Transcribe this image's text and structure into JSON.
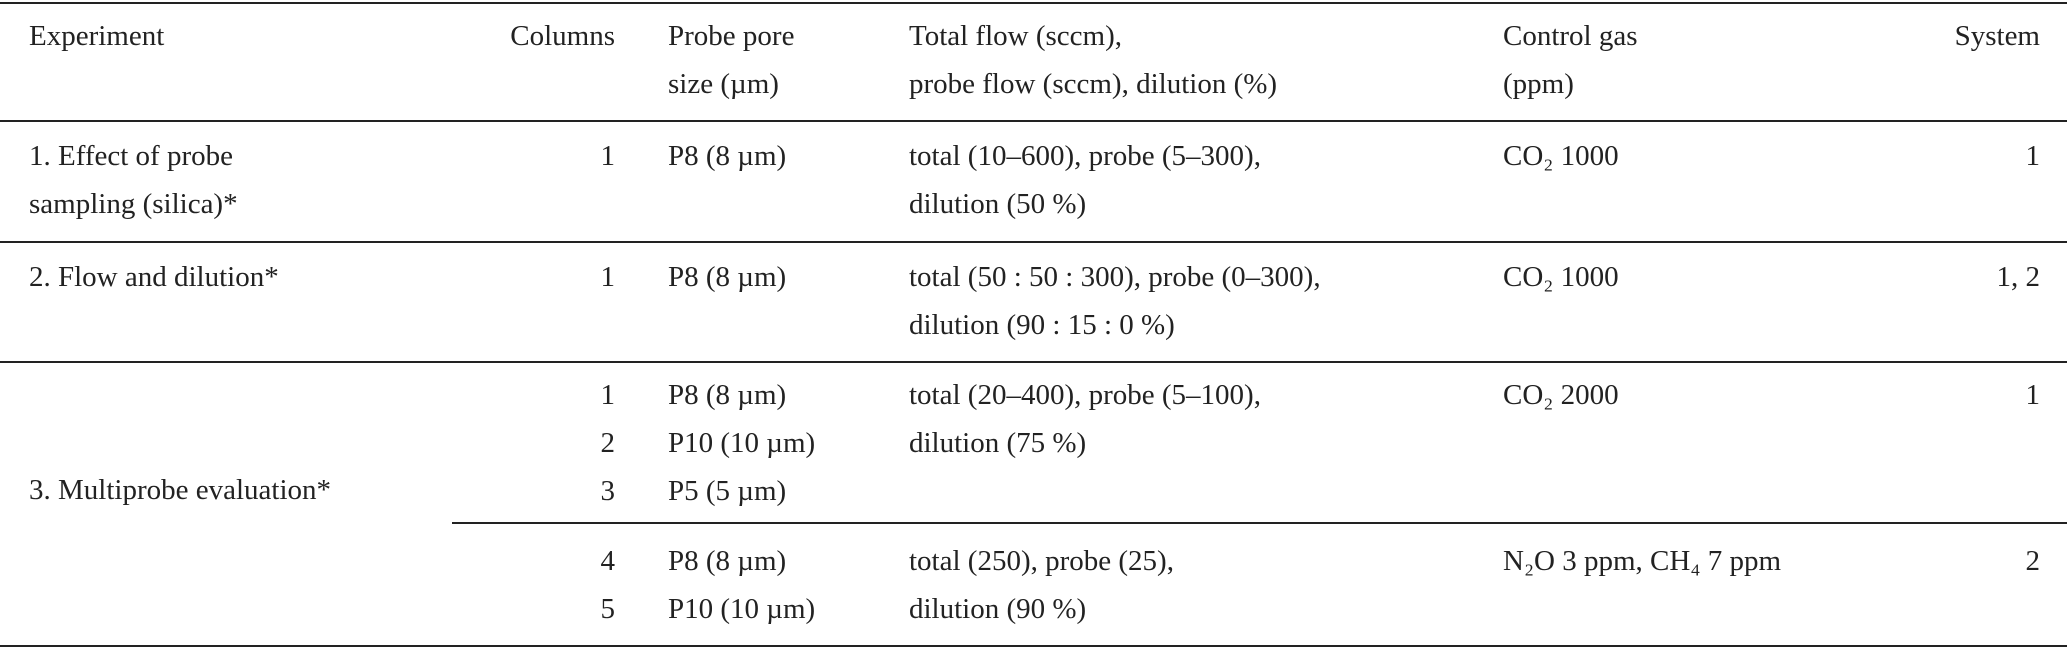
{
  "table": {
    "header": [
      [
        "Experiment"
      ],
      [
        "Columns"
      ],
      [
        "Probe pore",
        "size (µm)"
      ],
      [
        "Total flow (sccm),",
        "probe flow (sccm), dilution (%)"
      ],
      [
        "Control gas",
        "(ppm)"
      ],
      [
        "System"
      ]
    ],
    "rows": [
      {
        "experiment": [
          "1. Effect of probe",
          "sampling (silica)*"
        ],
        "subrows": [
          [
            [
              "1"
            ],
            [
              "P8 (8 µm)"
            ],
            [
              "total (10–600), probe (5–300),",
              "dilution (50 %)"
            ],
            [
              "CO₂ 1000"
            ],
            [
              "1"
            ]
          ]
        ]
      },
      {
        "experiment": [
          "2. Flow and dilution*"
        ],
        "subrows": [
          [
            [
              "1"
            ],
            [
              "P8 (8 µm)"
            ],
            [
              "total (50 : 50 : 300), probe (0–300),",
              "dilution (90 : 15 : 0 %)"
            ],
            [
              "CO₂ 1000"
            ],
            [
              "1, 2"
            ]
          ]
        ]
      },
      {
        "experiment": [
          "3. Multiprobe evaluation*"
        ],
        "subrows": [
          [
            [
              "1",
              "2",
              "3"
            ],
            [
              "P8 (8 µm)",
              "P10 (10 µm)",
              "P5 (5 µm)"
            ],
            [
              "total (20–400), probe (5–100),",
              "dilution (75 %)"
            ],
            [
              "CO₂ 2000"
            ],
            [
              "1"
            ]
          ],
          [
            [
              "4",
              "5"
            ],
            [
              "P8 (8 µm)",
              "P10 (10 µm)"
            ],
            [
              "total (250), probe (25),",
              "dilution (90 %)"
            ],
            [
              "N₂O 3 ppm, CH₄ 7 ppm"
            ],
            [
              "2"
            ]
          ]
        ]
      }
    ]
  }
}
